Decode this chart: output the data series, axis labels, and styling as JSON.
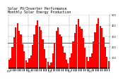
{
  "title": "Solar PV/Inverter Performance  Monthly Solar Energy Production",
  "title_fontsize": 3.5,
  "bar_color": "#ff0000",
  "bar_bottom_color": "#660000",
  "average_line_color": "#4444ff",
  "background_color": "#ffffff",
  "plot_bg_color": "#ffffff",
  "bottom_bg_color": "#000000",
  "grid_color": "#888888",
  "tick_fontsize": 2.5,
  "values": [
    85,
    100,
    200,
    290,
    380,
    420,
    350,
    320,
    230,
    160,
    80,
    55,
    95,
    120,
    220,
    320,
    400,
    450,
    390,
    360,
    270,
    180,
    100,
    65,
    30,
    55,
    140,
    240,
    350,
    380,
    320,
    300,
    210,
    150,
    85,
    50,
    105,
    140,
    250,
    330,
    410,
    460,
    390,
    370,
    285,
    195,
    110,
    72,
    110,
    145,
    255,
    340,
    415,
    465,
    395,
    375,
    290,
    198,
    112,
    74
  ],
  "xlabels": [
    "Jan\n09",
    "",
    "",
    "",
    "",
    "",
    "",
    "",
    "",
    "",
    "",
    "",
    "Jan\n10",
    "",
    "",
    "",
    "",
    "",
    "",
    "",
    "",
    "",
    "",
    "",
    "Jan\n11",
    "",
    "",
    "",
    "",
    "",
    "",
    "",
    "",
    "",
    "",
    "",
    "Jan\n12",
    "",
    "",
    "",
    "",
    "",
    "",
    "",
    "",
    "",
    "",
    "",
    "Jan\n13",
    "",
    "",
    "",
    "",
    "",
    "",
    "",
    "",
    "",
    "",
    ""
  ],
  "xtick_every": 12,
  "average": 240,
  "ylim": [
    0,
    500
  ],
  "yticks": [
    100,
    200,
    300,
    400,
    500
  ],
  "ytick_labels": [
    "100",
    "200",
    "300",
    "400",
    "500"
  ]
}
